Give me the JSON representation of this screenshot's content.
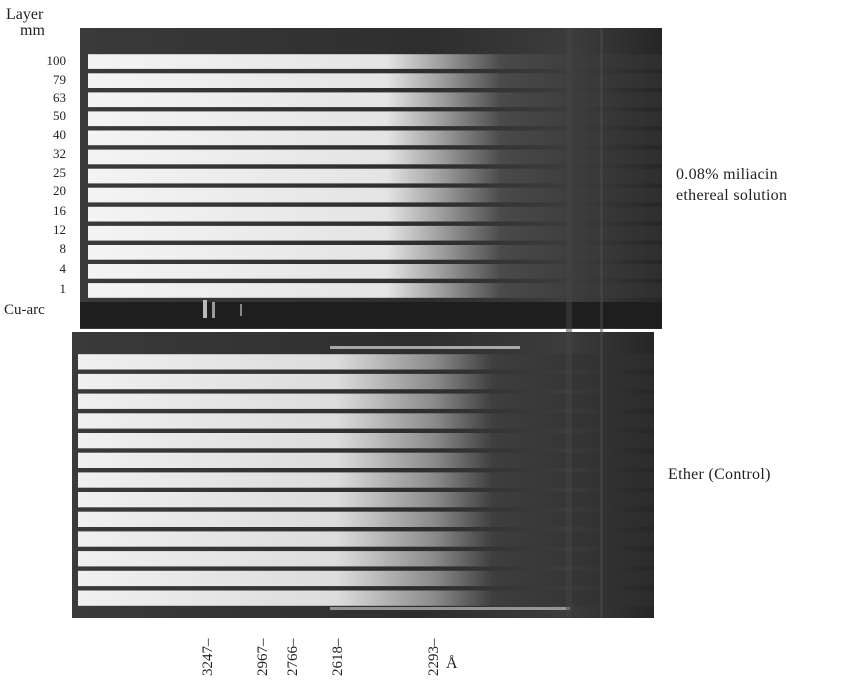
{
  "header": {
    "line1": "Layer",
    "line2": "mm"
  },
  "layers": [
    "100",
    "79",
    "63",
    "50",
    "40",
    "32",
    "25",
    "20",
    "16",
    "12",
    "8",
    "4",
    "1"
  ],
  "reference_label": "Cu-arc",
  "panels": {
    "top": {
      "label_line1": "0.08% miliacin",
      "label_line2": "ethereal solution"
    },
    "bottom": {
      "label": "Ether (Control)"
    }
  },
  "wavelengths": [
    "3247–",
    "2967–",
    "2766–",
    "2618–",
    "2293–"
  ],
  "wavelength_unit": "Å",
  "colors": {
    "film_dark": "#2a2a2a",
    "film_light": "#efefef",
    "divider": "#ffffff"
  }
}
